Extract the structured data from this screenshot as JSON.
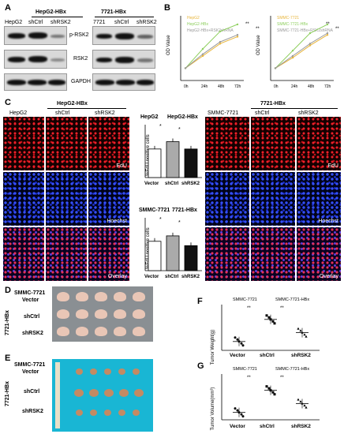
{
  "panelA": {
    "letter": "A",
    "group1": "HepG2-HBx",
    "group2": "7721-HBx",
    "lanes1": [
      "HepG2",
      "shCtrl",
      "shRSK2"
    ],
    "lanes2": [
      "7721",
      "shCtrl",
      "shRSK2"
    ],
    "rows": [
      "p-RSK2",
      "RSK2",
      "GAPDH"
    ]
  },
  "panelB": {
    "letter": "B",
    "chart1": {
      "legend": [
        "HepG2",
        "HepG2-HBx",
        "HepG2-HBx+RSK2shRNA"
      ],
      "sig": [
        "**",
        "**"
      ],
      "ylabel": "OD Value",
      "xticks": [
        "0h",
        "24h",
        "48h",
        "72h"
      ]
    },
    "chart2": {
      "legend": [
        "SMMC-7721",
        "SMMC-7721-HBx",
        "SMMC-7721-HBx+RSK2shRNA"
      ],
      "sig": [
        "**",
        "**"
      ],
      "ylabel": "OD Value",
      "xticks": [
        "0h",
        "24h",
        "48h",
        "72h"
      ]
    },
    "colors": {
      "c1": "#e8b53a",
      "c2": "#8ecf5e",
      "c3": "#9a9a9a"
    }
  },
  "panelC": {
    "letter": "C",
    "left_group": "HepG2-HBx",
    "left_cols": [
      "HepG2",
      "shCtrl",
      "shRSK2"
    ],
    "right_group": "7721-HBx",
    "right_cols": [
      "SMMC-7721",
      "shCtrl",
      "shRSK2"
    ],
    "rows": [
      "EdU",
      "Hoechst",
      "Overlay"
    ],
    "bar1": {
      "g1": "HepG2",
      "g2": "HepG2-HBx",
      "ylabel": "%EdU positive cells",
      "xticks": [
        "Vector",
        "shCtrl",
        "shRSK2"
      ],
      "sig": [
        "*",
        "*"
      ]
    },
    "bar2": {
      "g1": "SMMC-7721",
      "g2": "7721-HBx",
      "ylabel": "%EdU positive cells",
      "xticks": [
        "Vector",
        "shCtrl",
        "shRSK2"
      ],
      "sig": [
        "*",
        "*"
      ]
    }
  },
  "panelD": {
    "letter": "D",
    "top": "SMMC-7721",
    "top2": "Vector",
    "side": "7721-HBx",
    "rows": [
      "shCtrl",
      "shRSK2"
    ]
  },
  "panelE": {
    "letter": "E",
    "top": "SMMC-7721",
    "top2": "Vector",
    "side": "7721-HBx",
    "rows": [
      "shCtrl",
      "shRSK2"
    ]
  },
  "panelF": {
    "letter": "F",
    "g1": "SMMC-7721",
    "g2": "SMMC-7721-HBx",
    "ylabel": "Tumor Weight(g)",
    "xticks": [
      "Vector",
      "shCtrl",
      "shRSK2"
    ],
    "sig": [
      "**",
      "**"
    ]
  },
  "panelG": {
    "letter": "G",
    "g1": "SMMC-7721",
    "g2": "SMMC-7721-HBx",
    "ylabel": "Tumor Volume(mm³)",
    "xticks": [
      "Vector",
      "shCtrl",
      "shRSK2"
    ],
    "sig": [
      "**",
      "**"
    ]
  },
  "chart_data": [
    {
      "type": "line",
      "title": "",
      "ylabel": "OD Value",
      "x": [
        "0h",
        "24h",
        "48h",
        "72h"
      ],
      "series": [
        {
          "name": "HepG2",
          "values": [
            0.7,
            1.4,
            2.1,
            2.5
          ]
        },
        {
          "name": "HepG2-HBx",
          "values": [
            0.7,
            1.8,
            2.8,
            3.2
          ]
        },
        {
          "name": "HepG2-HBx+RSK2shRNA",
          "values": [
            0.7,
            1.5,
            2.2,
            2.6
          ]
        }
      ]
    },
    {
      "type": "line",
      "title": "",
      "ylabel": "OD Value",
      "x": [
        "0h",
        "24h",
        "48h",
        "72h"
      ],
      "series": [
        {
          "name": "SMMC-7721",
          "values": [
            0.7,
            1.3,
            2.0,
            2.6
          ]
        },
        {
          "name": "SMMC-7721-HBx",
          "values": [
            0.7,
            1.7,
            2.7,
            3.2
          ]
        },
        {
          "name": "SMMC-7721-HBx+RSK2shRNA",
          "values": [
            0.7,
            1.4,
            2.1,
            2.7
          ]
        }
      ]
    },
    {
      "type": "bar",
      "ylabel": "%EdU positive cells",
      "categories": [
        "Vector",
        "shCtrl",
        "shRSK2"
      ],
      "values": [
        35,
        44,
        35
      ],
      "ylim": [
        0,
        60
      ]
    },
    {
      "type": "bar",
      "ylabel": "%EdU positive cells",
      "categories": [
        "Vector",
        "shCtrl",
        "shRSK2"
      ],
      "values": [
        27,
        32,
        23
      ],
      "ylim": [
        0,
        45
      ]
    },
    {
      "type": "scatter",
      "ylabel": "Tumor Weight(g)",
      "categories": [
        "Vector",
        "shCtrl",
        "shRSK2"
      ],
      "means": [
        0.4,
        1.4,
        0.8
      ],
      "ylim": [
        0,
        2.0
      ]
    },
    {
      "type": "scatter",
      "ylabel": "Tumor Volume(mm³)",
      "categories": [
        "Vector",
        "shCtrl",
        "shRSK2"
      ],
      "means": [
        500,
        2000,
        1100
      ],
      "ylim": [
        0,
        3000
      ]
    }
  ]
}
